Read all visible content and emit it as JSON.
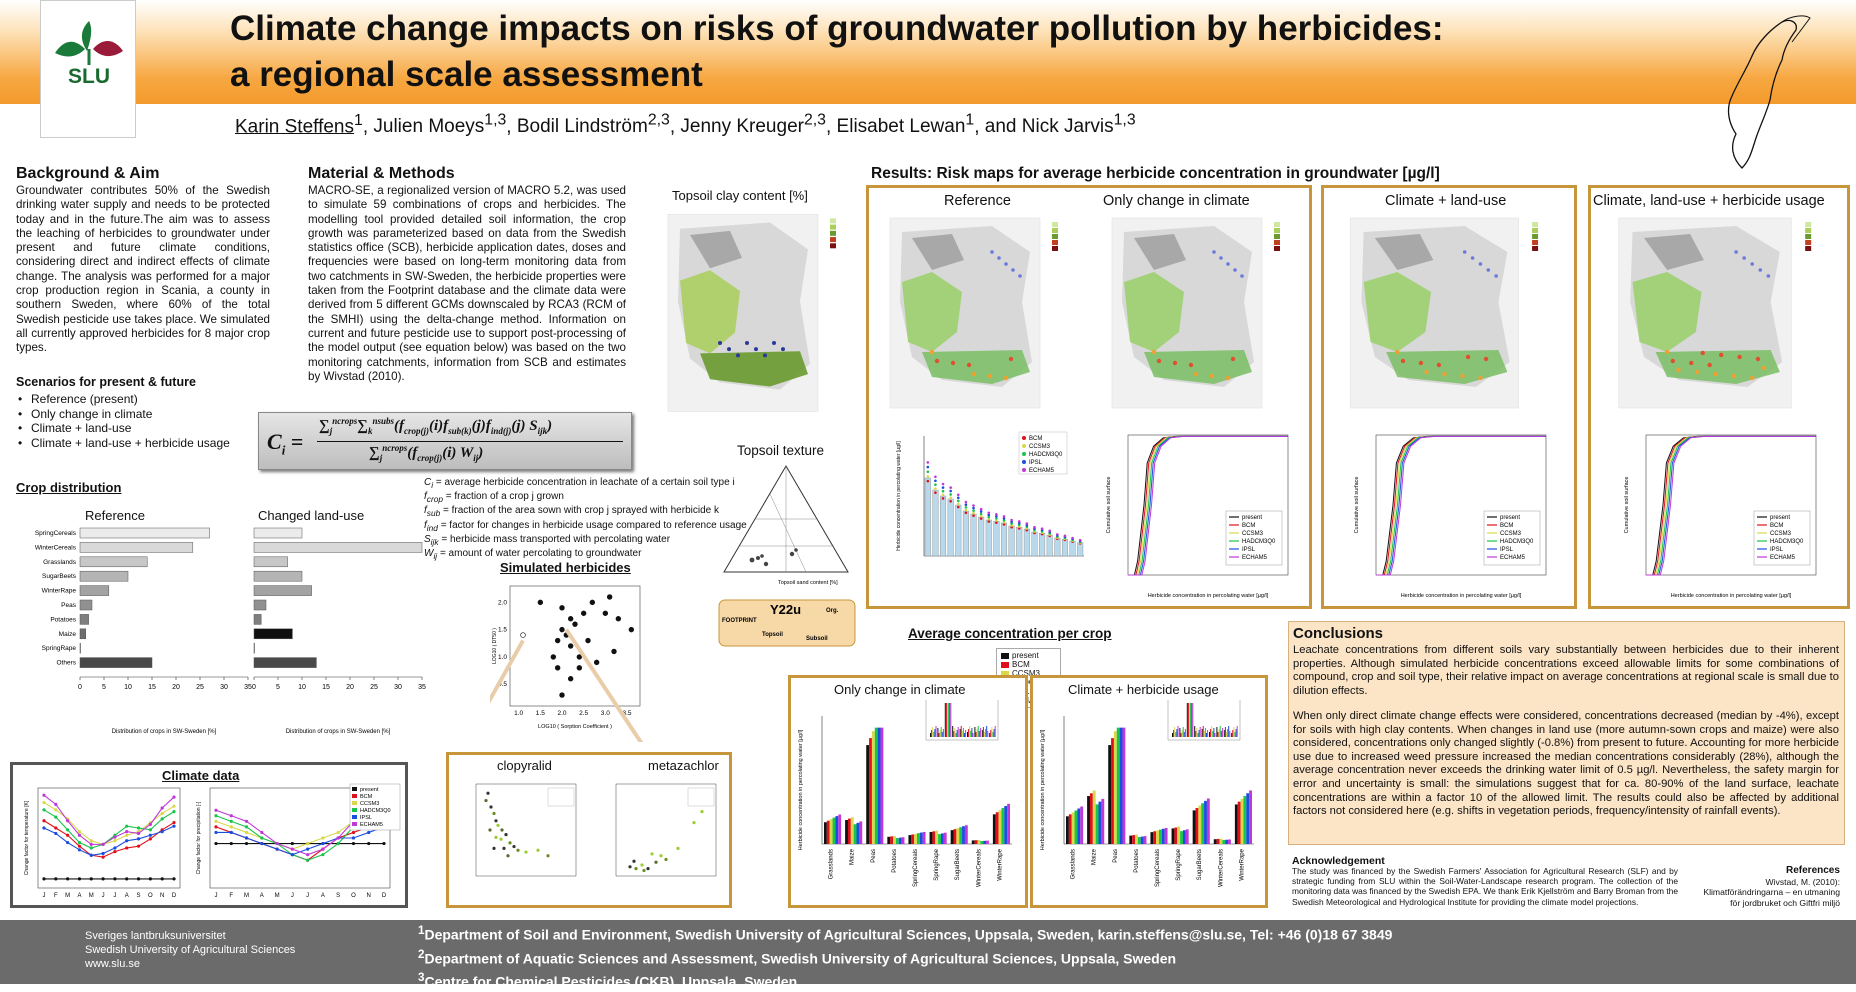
{
  "header": {
    "title_line1": "Climate change impacts on risks of groundwater pollution by herbicides:",
    "title_line2": "a regional scale assessment",
    "logo_text": "SLU"
  },
  "authors": {
    "first": "Karin Steffens",
    "first_sup": "1",
    "rest": [
      {
        "name": "Julien Moeys",
        "sup": "1,3"
      },
      {
        "name": "Bodil Lindström",
        "sup": "2,3"
      },
      {
        "name": "Jenny Kreuger",
        "sup": "2,3"
      },
      {
        "name": " Elisabet Lewan",
        "sup": "1"
      },
      {
        "name": "and Nick Jarvis",
        "sup": "1,3"
      }
    ]
  },
  "background": {
    "heading": "Background & Aim",
    "text": "Groundwater contributes 50% of the Swedish drinking water supply and needs to be protected today and in the future.The aim was to assess the leaching of herbicides to groundwater under present and future climate conditions, considering direct and indirect effects of climate change. The analysis was performed for a major crop production region in Scania, a county in southern Sweden, where 60% of the total Swedish pesticide use takes place. We simulated all currently approved herbicides for 8 major crop types."
  },
  "scenarios": {
    "heading": "Scenarios for present & future",
    "items": [
      "Reference (present)",
      "Only change in climate",
      "Climate + land-use",
      "Climate + land-use + herbicide usage"
    ]
  },
  "methods": {
    "heading": "Material & Methods",
    "text": "MACRO-SE, a regionalized version of MACRO 5.2, was used to simulate 59 combinations of crops and herbicides. The modelling tool provided detailed soil information, the crop growth was parameterized based on data from the Swedish statistics office (SCB), herbicide application dates, doses and frequencies were based on long-term monitoring data from two catchments in SW-Sweden, the herbicide properties were taken from the Footprint database and the climate data were derived from 5 different GCMs downscaled by RCA3 (RCM of the SMHI) using the delta-change method. Information on current and future pesticide use to support post-processing of the model output (see equation below) was based on the two monitoring catchments, information from SCB and estimates by Wivstad (2010)."
  },
  "equation": {
    "lhs": "C",
    "lhs_sub": "i",
    "equals": "=",
    "sum": "∑",
    "sum_j": "j",
    "sum_k": "k",
    "upper_crops": "ncrops",
    "upper_subs": "nsubs",
    "f": "f",
    "crop_j": "crop(j)",
    "sub_k": "sub(k)",
    "ind_j": "ind(j)",
    "i": "(i)",
    "j": "(j)",
    "S": "S",
    "S_sub": "ijk",
    "W": "W",
    "W_sub": "ij"
  },
  "definitions": [
    {
      "sym": "C",
      "sub": "i",
      "text": "= average herbicide concentration in leachate of a certain soil type i"
    },
    {
      "sym": "f",
      "sub": "crop",
      "text": "= fraction of a crop j grown"
    },
    {
      "sym": "f",
      "sub": "sub",
      "text": "= fraction of the area sown with crop j sprayed with herbicide k"
    },
    {
      "sym": "f",
      "sub": "ind",
      "text": "= factor for changes in herbicide usage compared to reference usage"
    },
    {
      "sym": "S",
      "sub": "ijk",
      "text": "= herbicide mass transported with percolating water"
    },
    {
      "sym": "W",
      "sub": "ij",
      "text": "= amount of water percolating to groundwater"
    }
  ],
  "crop_distribution": {
    "heading": "Crop distribution",
    "ref_title": "Reference",
    "changed_title": "Changed land-use",
    "xlabel": "Distribution of crops in SW-Sweden [%]",
    "ticks": [
      "0",
      "5",
      "10",
      "15",
      "20",
      "25",
      "30",
      "35"
    ]
  },
  "chart_data": [
    {
      "type": "bar",
      "title": "Reference",
      "categories": [
        "SpringCereals",
        "WinterCereals",
        "Grasslands",
        "SugarBeets",
        "WinterRape",
        "Peas",
        "Potatoes",
        "Maize",
        "SpringRape",
        "Others"
      ],
      "values": [
        27,
        23.5,
        14,
        10,
        6,
        2.5,
        1.8,
        1.2,
        0.1,
        15
      ],
      "xlabel": "Distribution of crops in SW-Sweden [%]",
      "xlim": [
        0,
        35
      ]
    },
    {
      "type": "bar",
      "title": "Changed land-use",
      "categories": [
        "SpringCereals",
        "WinterCereals",
        "Grasslands",
        "SugarBeets",
        "WinterRape",
        "Peas",
        "Potatoes",
        "Maize",
        "SpringRape",
        "Others"
      ],
      "values": [
        10,
        35,
        7,
        10,
        12,
        2.5,
        1.5,
        8,
        0.1,
        13
      ],
      "xlabel": "Distribution of crops in SW-Sweden [%]",
      "xlim": [
        0,
        35
      ]
    }
  ],
  "climate": {
    "heading": "Climate data",
    "months": [
      "J",
      "F",
      "M",
      "A",
      "M",
      "J",
      "J",
      "A",
      "S",
      "O",
      "N",
      "D"
    ],
    "ylabel_left": "Change factor for temperature [K]",
    "ylabel_right": "Change factor for precipitation [-]",
    "legend": [
      "present",
      "BCM",
      "CCSM3",
      "HADCM3Q0",
      "IPSL",
      "ECHAM5"
    ]
  },
  "topsoil_clay": {
    "title": "Topsoil clay content [%]"
  },
  "topsoil_texture": {
    "title": "Topsoil texture",
    "xlabel": "Topsoil sand content [%]",
    "ylabel": "Topsoil clay content [%]"
  },
  "flow": {
    "footprint": "FOOTPRINT hydrologic class",
    "code": "Y22u",
    "topsoil": "Topsoil texture code",
    "subsoil": "Subsoil texture code",
    "org": "Org. matter class"
  },
  "simulated": {
    "heading": "Simulated herbicides",
    "xlabel": "LOG10 ( Sorption Coefficient )",
    "ylabel": "LOG10 ( DT50 )",
    "xticks": [
      "1.0",
      "1.5",
      "2.0",
      "2.5",
      "3.0",
      "3.5"
    ],
    "yticks": [
      "0.5",
      "1.0",
      "1.5",
      "2.0"
    ]
  },
  "clopyralid": {
    "label": "clopyralid"
  },
  "metazachlor": {
    "label": "metazachlor"
  },
  "results": {
    "heading": "Results: Risk maps for average herbicide concentration in groundwater [µg/l]",
    "ref": "Reference",
    "climate": "Only change in climate",
    "land": "Climate + land-use",
    "all": "Climate, land-use + herbicide usage",
    "cdf_x": "Herbicide concentration in percolating water [µg/l]",
    "cdf_y": "Cumulative soil surface",
    "bar_y": "Herbicide concentration in percolating water [µg/l]"
  },
  "legend6": [
    "present",
    "BCM",
    "CCSM3",
    "HADCM3Q0",
    "IPSL",
    "ECHAM5"
  ],
  "legend5": [
    "BCM",
    "CCSM3",
    "HADCM3Q0",
    "IPSL",
    "ECHAM5"
  ],
  "avg": {
    "heading": "Average concentration per crop",
    "left": "Only change in climate",
    "right": "Climate + herbicide usage",
    "ylabel": "Herbicide concentration in percolating water [µg/l]",
    "crops": [
      "Grasslands",
      "Maize",
      "Peas",
      "Potatoes",
      "SpringCereals",
      "SpringRape",
      "SugarBeets",
      "WinterCereals",
      "WinterRape"
    ]
  },
  "conclusions": {
    "heading": "Conclusions",
    "p1": "Leachate concentrations from different soils vary substantially between herbicides due to their inherent properties. Although simulated herbicide concentrations exceed allowable limits for some combinations of compound, crop and soil type, their relative impact on average concentrations at regional scale is small due to dilution effects.",
    "p2": "When only direct climate change effects were considered, concentrations decreased (median by -4%), except for soils with high clay contents. When changes in land use (more autumn-sown crops and maize) were also considered, concentrations only changed slightly (-0.8%) from present to future. Accounting for more herbicide use due to increased weed pressure increased the median concentrations considerably (28%), although the average concentration never exceeds the drinking water limit of 0.5 µg/l. Nevertheless, the safety margin for error and uncertainty is small: the simulations suggest that for ca. 80-90% of the land surface, leachate concentrations are within a factor 10 of the allowed limit. The results could also be affected by additional factors not considered here (e.g. shifts in vegetation periods, frequency/intensity of rainfall events)."
  },
  "ack": {
    "heading": "Acknowledgement",
    "text": "The study was financed by the Swedish Farmers' Association for Agricultural Research (SLF) and by strategic funding from SLU within the Soil-Water-Landscape research program. The collection of the monitoring data was financed by the Swedish EPA. We thank Erik Kjellström and Barry Broman from the Swedish Meteorological and Hydrological Institute for providing the climate model projections."
  },
  "refs": {
    "heading": "References",
    "l1": "Wivstad, M. (2010):",
    "l2": "Klimatförändringarna – en utmaning",
    "l3": "för jordbruket och Giftfri miljö"
  },
  "footer": {
    "l1": "Sveriges lantbruksuniversitet",
    "l2": "Swedish University of Agricultural Sciences",
    "l3": "www.slu.se",
    "a1sup": "1",
    "a1": "Department of Soil and Environment, Swedish University of Agricultural Sciences, Uppsala, Sweden, karin.steffens@slu.se, Tel: +46 (0)18 67 3849",
    "a2sup": "2",
    "a2": "Department of Aquatic Sciences and Assessment, Swedish University of Agricultural Sciences, Uppsala, Sweden",
    "a3sup": "3",
    "a3": "Centre for Chemical Pesticides (CKB), Uppsala, Sweden"
  },
  "colors": {
    "present": "#111111",
    "BCM": "#e0101a",
    "CCSM3": "#d8d84a",
    "HADCM3Q0": "#19c44a",
    "IPSL": "#1a4ee0",
    "ECHAM5": "#c038d8",
    "accent": "#c8963a"
  }
}
